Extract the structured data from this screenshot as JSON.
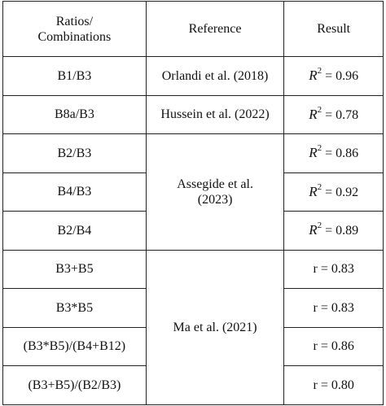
{
  "table": {
    "header": {
      "ratios": [
        "Ratios/",
        "Combinations"
      ],
      "reference": "Reference",
      "result": "Result"
    },
    "groups": [
      {
        "reference": [
          "Orlandi et al. (2018)"
        ],
        "rows": [
          {
            "ratio": "B1/B3",
            "result": {
              "var": "R",
              "sup": "2",
              "rest": "= 0.96"
            }
          }
        ]
      },
      {
        "reference": [
          "Hussein et al. (2022)"
        ],
        "rows": [
          {
            "ratio": "B8a/B3",
            "result": {
              "var": "R",
              "sup": "2",
              "rest": "= 0.78"
            }
          }
        ]
      },
      {
        "reference": [
          "Assegide et al.",
          "(2023)"
        ],
        "rows": [
          {
            "ratio": "B2/B3",
            "result": {
              "var": "R",
              "sup": "2",
              "rest": "= 0.86"
            }
          },
          {
            "ratio": "B4/B3",
            "result": {
              "var": "R",
              "sup": "2",
              "rest": "= 0.92"
            }
          },
          {
            "ratio": "B2/B4",
            "result": {
              "var": "R",
              "sup": "2",
              "rest": "= 0.89"
            }
          }
        ]
      },
      {
        "reference": [
          "Ma et al. (2021)"
        ],
        "rows": [
          {
            "ratio": "B3+B5",
            "result": {
              "text": "r = 0.83"
            }
          },
          {
            "ratio": "B3*B5",
            "result": {
              "text": "r = 0.83"
            }
          },
          {
            "ratio": "(B3*B5)/(B4+B12)",
            "result": {
              "text": "r = 0.86"
            }
          },
          {
            "ratio": "(B3+B5)/(B2/B3)",
            "result": {
              "text": "r = 0.80"
            }
          }
        ]
      }
    ]
  }
}
